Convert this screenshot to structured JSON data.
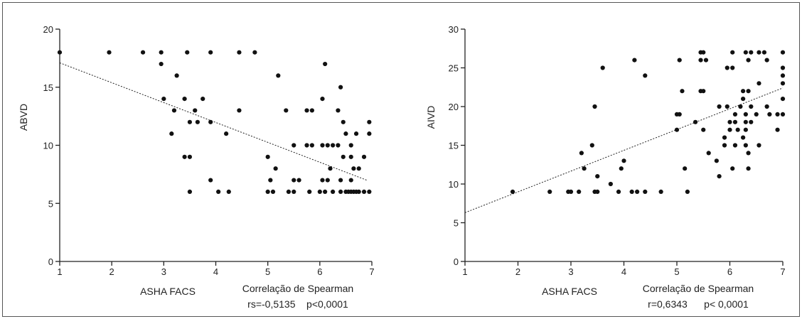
{
  "chart_data": [
    {
      "type": "scatter",
      "xlabel": "ASHA FACS",
      "ylabel": "ABVD",
      "xlim": [
        1,
        7
      ],
      "ylim": [
        0,
        20
      ],
      "xticks": [
        "1",
        "2",
        "3",
        "4",
        "5",
        "6",
        "7"
      ],
      "yticks": [
        "0",
        "5",
        "10",
        "15",
        "20"
      ],
      "grid": false,
      "stats_title": "Correlação de Spearman",
      "stats_text": "rs=-0,5135    p<0,0001",
      "trendline": {
        "x": [
          1,
          6.9
        ],
        "y": [
          17.1,
          7.0
        ]
      },
      "points": [
        [
          1.0,
          18
        ],
        [
          1.95,
          18
        ],
        [
          2.6,
          18
        ],
        [
          2.95,
          18
        ],
        [
          3.45,
          18
        ],
        [
          3.9,
          18
        ],
        [
          4.45,
          18
        ],
        [
          4.75,
          18
        ],
        [
          2.95,
          17
        ],
        [
          6.1,
          17
        ],
        [
          3.25,
          16
        ],
        [
          5.2,
          16
        ],
        [
          6.4,
          15
        ],
        [
          3.0,
          14
        ],
        [
          3.4,
          14
        ],
        [
          3.75,
          14
        ],
        [
          6.05,
          14
        ],
        [
          3.2,
          13
        ],
        [
          3.6,
          13
        ],
        [
          4.45,
          13
        ],
        [
          5.35,
          13
        ],
        [
          5.75,
          13
        ],
        [
          5.85,
          13
        ],
        [
          6.35,
          13
        ],
        [
          3.5,
          12
        ],
        [
          3.65,
          12
        ],
        [
          3.9,
          12
        ],
        [
          6.45,
          12
        ],
        [
          6.95,
          12
        ],
        [
          3.15,
          11
        ],
        [
          4.2,
          11
        ],
        [
          6.5,
          11
        ],
        [
          6.7,
          11
        ],
        [
          6.95,
          11
        ],
        [
          5.5,
          10
        ],
        [
          5.75,
          10
        ],
        [
          5.85,
          10
        ],
        [
          6.05,
          10
        ],
        [
          6.15,
          10
        ],
        [
          6.25,
          10
        ],
        [
          6.35,
          10
        ],
        [
          6.6,
          10
        ],
        [
          3.4,
          9
        ],
        [
          3.5,
          9
        ],
        [
          5.0,
          9
        ],
        [
          6.45,
          9
        ],
        [
          6.6,
          9
        ],
        [
          6.85,
          9
        ],
        [
          5.15,
          8
        ],
        [
          6.2,
          8
        ],
        [
          6.65,
          8
        ],
        [
          6.75,
          8
        ],
        [
          3.9,
          7
        ],
        [
          5.05,
          7
        ],
        [
          5.5,
          7
        ],
        [
          5.6,
          7
        ],
        [
          6.05,
          7
        ],
        [
          6.15,
          7
        ],
        [
          6.4,
          7
        ],
        [
          6.6,
          7
        ],
        [
          3.5,
          6
        ],
        [
          4.05,
          6
        ],
        [
          4.25,
          6
        ],
        [
          5.0,
          6
        ],
        [
          5.1,
          6
        ],
        [
          5.4,
          6
        ],
        [
          5.5,
          6
        ],
        [
          5.8,
          6
        ],
        [
          6.0,
          6
        ],
        [
          6.1,
          6
        ],
        [
          6.25,
          6
        ],
        [
          6.4,
          6
        ],
        [
          6.5,
          6
        ],
        [
          6.55,
          6
        ],
        [
          6.6,
          6
        ],
        [
          6.65,
          6
        ],
        [
          6.7,
          6
        ],
        [
          6.75,
          6
        ],
        [
          6.85,
          6
        ],
        [
          6.95,
          6
        ]
      ]
    },
    {
      "type": "scatter",
      "xlabel": "ASHA FACS",
      "ylabel": "AIVD",
      "xlim": [
        1,
        7
      ],
      "ylim": [
        0,
        30
      ],
      "xticks": [
        "1",
        "2",
        "3",
        "4",
        "5",
        "6",
        "7"
      ],
      "yticks": [
        "0",
        "5",
        "10",
        "15",
        "20",
        "25",
        "30"
      ],
      "grid": false,
      "stats_title": "Correlação de Spearman",
      "stats_text": "r=0,6343      p< 0,0001",
      "trendline": {
        "x": [
          1,
          7
        ],
        "y": [
          6.3,
          22.4
        ]
      },
      "points": [
        [
          5.45,
          27
        ],
        [
          5.5,
          27
        ],
        [
          6.05,
          27
        ],
        [
          6.3,
          27
        ],
        [
          6.4,
          27
        ],
        [
          6.55,
          27
        ],
        [
          6.65,
          27
        ],
        [
          7.0,
          27
        ],
        [
          4.2,
          26
        ],
        [
          5.05,
          26
        ],
        [
          5.45,
          26
        ],
        [
          5.55,
          26
        ],
        [
          6.35,
          26
        ],
        [
          6.7,
          26
        ],
        [
          3.6,
          25
        ],
        [
          5.95,
          25
        ],
        [
          6.05,
          25
        ],
        [
          7.0,
          25
        ],
        [
          4.4,
          24
        ],
        [
          7.0,
          24
        ],
        [
          6.55,
          23
        ],
        [
          7.0,
          23
        ],
        [
          5.1,
          22
        ],
        [
          5.45,
          22
        ],
        [
          5.5,
          22
        ],
        [
          6.25,
          22
        ],
        [
          6.35,
          22
        ],
        [
          6.25,
          21
        ],
        [
          7.0,
          21
        ],
        [
          3.45,
          20
        ],
        [
          5.8,
          20
        ],
        [
          5.95,
          20
        ],
        [
          6.2,
          20
        ],
        [
          6.4,
          20
        ],
        [
          6.7,
          20
        ],
        [
          5.0,
          19
        ],
        [
          5.05,
          19
        ],
        [
          6.1,
          19
        ],
        [
          6.3,
          19
        ],
        [
          6.5,
          19
        ],
        [
          6.75,
          19
        ],
        [
          6.9,
          19
        ],
        [
          7.0,
          19
        ],
        [
          5.35,
          18
        ],
        [
          6.0,
          18
        ],
        [
          6.1,
          18
        ],
        [
          6.3,
          18
        ],
        [
          6.4,
          18
        ],
        [
          5.0,
          17
        ],
        [
          5.5,
          17
        ],
        [
          6.0,
          17
        ],
        [
          6.15,
          17
        ],
        [
          6.3,
          17
        ],
        [
          6.9,
          17
        ],
        [
          5.9,
          16
        ],
        [
          6.25,
          16
        ],
        [
          3.4,
          15
        ],
        [
          5.9,
          15
        ],
        [
          6.1,
          15
        ],
        [
          6.3,
          15
        ],
        [
          6.55,
          15
        ],
        [
          3.2,
          14
        ],
        [
          5.6,
          14
        ],
        [
          6.35,
          14
        ],
        [
          4.0,
          13
        ],
        [
          5.75,
          13
        ],
        [
          3.25,
          12
        ],
        [
          3.95,
          12
        ],
        [
          5.15,
          12
        ],
        [
          6.05,
          12
        ],
        [
          6.35,
          12
        ],
        [
          3.5,
          11
        ],
        [
          5.8,
          11
        ],
        [
          3.75,
          10
        ],
        [
          1.9,
          9
        ],
        [
          2.6,
          9
        ],
        [
          2.95,
          9
        ],
        [
          3.0,
          9
        ],
        [
          3.15,
          9
        ],
        [
          3.45,
          9
        ],
        [
          3.5,
          9
        ],
        [
          3.9,
          9
        ],
        [
          4.15,
          9
        ],
        [
          4.25,
          9
        ],
        [
          4.4,
          9
        ],
        [
          4.7,
          9
        ],
        [
          5.2,
          9
        ]
      ]
    }
  ]
}
